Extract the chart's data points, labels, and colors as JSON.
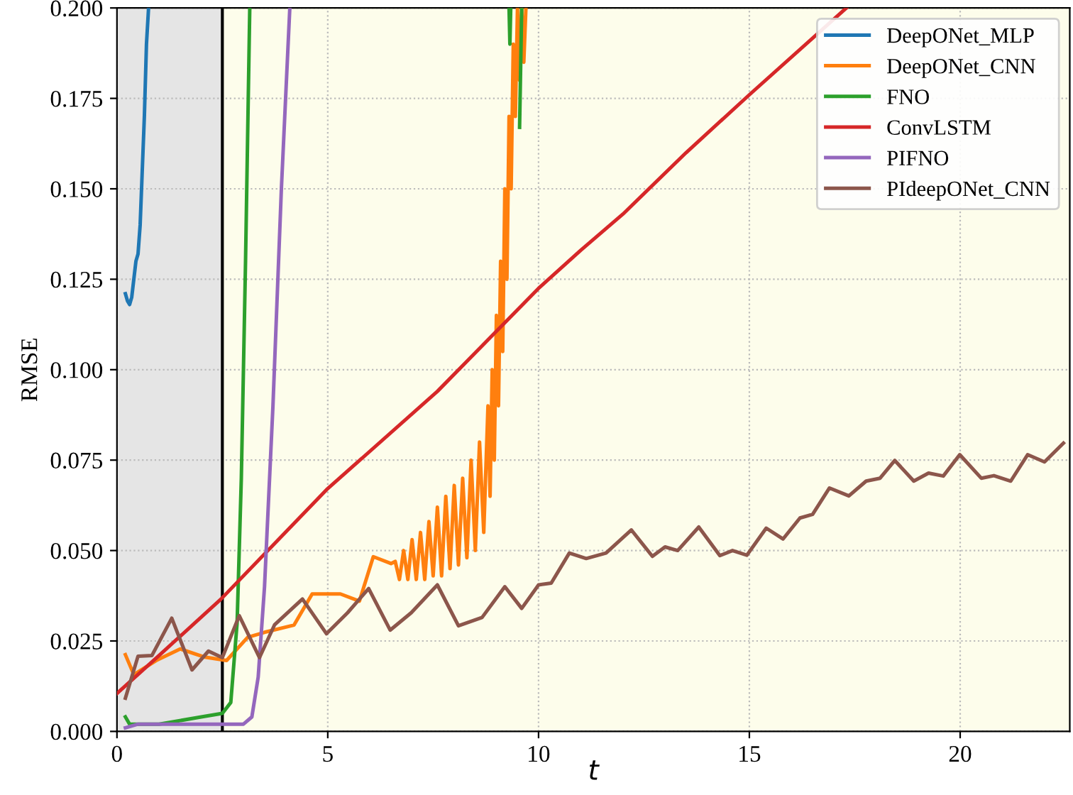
{
  "chart_data": {
    "type": "line",
    "xlabel": "t",
    "ylabel": "RMSE",
    "xlim": [
      0,
      22.6
    ],
    "ylim": [
      0,
      0.2
    ],
    "xticks": [
      0,
      5,
      10,
      15,
      20
    ],
    "yticks": [
      {
        "value": 0,
        "label": "0.000"
      },
      {
        "value": 0.025,
        "label": "0.025"
      },
      {
        "value": 0.05,
        "label": "0.050"
      },
      {
        "value": 0.075,
        "label": "0.075"
      },
      {
        "value": 0.1,
        "label": "0.100"
      },
      {
        "value": 0.125,
        "label": "0.125"
      },
      {
        "value": 0.15,
        "label": "0.150"
      },
      {
        "value": 0.175,
        "label": "0.175"
      },
      {
        "value": 0.2,
        "label": "0.200"
      }
    ],
    "grid": true,
    "legend": "top right",
    "marker": "none",
    "line_style": "solid",
    "bands": [
      {
        "axis": "x",
        "from": 0,
        "to": 2.5,
        "color": "#e5e5e5"
      },
      {
        "axis": "x",
        "from": 2.5,
        "to": 22.6,
        "color": "#fdfdeb"
      }
    ],
    "ref_lines": [
      {
        "axis": "x",
        "value": 2.5,
        "color": "#000000"
      }
    ],
    "series": [
      {
        "name": "DeepONet_MLP",
        "color": "#1f77b4",
        "x": [
          0.2,
          0.25,
          0.3,
          0.35,
          0.4,
          0.45,
          0.5,
          0.55,
          0.6,
          0.65,
          0.7,
          0.75
        ],
        "values": [
          0.121,
          0.119,
          0.118,
          0.12,
          0.125,
          0.13,
          0.132,
          0.14,
          0.155,
          0.17,
          0.19,
          0.2
        ]
      },
      {
        "name": "DeepONet_CNN",
        "color": "#ff7f0e",
        "x": [
          0.2,
          0.4,
          0.93,
          1.5,
          2.06,
          2.6,
          3.1,
          3.5,
          4.2,
          4.63,
          5.3,
          5.75,
          6.08,
          6.5,
          6.6,
          6.7,
          6.8,
          6.9,
          7.0,
          7.1,
          7.2,
          7.3,
          7.4,
          7.5,
          7.6,
          7.7,
          7.8,
          7.9,
          8.0,
          8.1,
          8.2,
          8.3,
          8.4,
          8.5,
          8.6,
          8.7,
          8.8,
          8.85,
          8.9,
          8.95,
          9.0,
          9.05,
          9.1,
          9.15,
          9.2,
          9.25,
          9.3,
          9.35,
          9.4,
          9.45,
          9.5,
          9.55,
          9.6,
          9.65,
          9.7
        ],
        "values": [
          0.0212,
          0.0157,
          0.0196,
          0.0228,
          0.0206,
          0.0196,
          0.026,
          0.0274,
          0.0294,
          0.038,
          0.038,
          0.036,
          0.0483,
          0.0464,
          0.047,
          0.042,
          0.05,
          0.042,
          0.053,
          0.042,
          0.055,
          0.042,
          0.058,
          0.043,
          0.062,
          0.043,
          0.065,
          0.045,
          0.068,
          0.046,
          0.07,
          0.048,
          0.075,
          0.05,
          0.08,
          0.055,
          0.09,
          0.065,
          0.1,
          0.075,
          0.115,
          0.09,
          0.13,
          0.105,
          0.15,
          0.125,
          0.17,
          0.15,
          0.19,
          0.17,
          0.2,
          0.18,
          0.2,
          0.185,
          0.2
        ]
      },
      {
        "name": "FNO",
        "color": "#2ca02c",
        "x": [
          0.2,
          0.3,
          1.0,
          2.0,
          2.5,
          2.7,
          2.85,
          2.95,
          3.05,
          3.15,
          9.28,
          9.3,
          9.32,
          9.34,
          9.5,
          9.55,
          9.6
        ],
        "values": [
          0.004,
          0.002,
          0.002,
          0.004,
          0.005,
          0.008,
          0.03,
          0.07,
          0.13,
          0.2,
          null,
          0.2,
          0.19,
          0.2,
          null,
          0.167,
          0.2
        ]
      },
      {
        "name": "ConvLSTM",
        "color": "#d62728",
        "x": [
          0,
          1,
          2.47,
          4.97,
          7.6,
          10,
          11,
          12,
          13.5,
          15,
          17.3
        ],
        "values": [
          0.0105,
          0.021,
          0.0366,
          0.0668,
          0.094,
          0.1225,
          0.133,
          0.143,
          0.16,
          0.176,
          0.2
        ]
      },
      {
        "name": "PIFNO",
        "color": "#9467bd",
        "x": [
          0.2,
          0.5,
          3.0,
          3.2,
          3.35,
          3.5,
          3.7,
          3.9,
          4.1
        ],
        "values": [
          0.001,
          0.002,
          0.002,
          0.004,
          0.015,
          0.04,
          0.09,
          0.15,
          0.2
        ]
      },
      {
        "name": "PIdeepONet_CNN",
        "color": "#8c564b",
        "x": [
          0.2,
          0.5,
          0.83,
          1.3,
          1.78,
          2.17,
          2.5,
          2.9,
          3.38,
          3.74,
          4.4,
          4.97,
          5.47,
          5.97,
          6.48,
          6.98,
          7.6,
          8.1,
          8.66,
          9.2,
          9.6,
          10.0,
          10.3,
          10.73,
          11.13,
          11.6,
          12.2,
          12.7,
          13.0,
          13.3,
          13.8,
          14.3,
          14.6,
          14.94,
          15.4,
          15.8,
          16.2,
          16.5,
          16.9,
          17.36,
          17.77,
          18.1,
          18.45,
          18.9,
          19.25,
          19.6,
          19.99,
          20.5,
          20.8,
          21.2,
          21.6,
          22.0,
          22.45
        ],
        "values": [
          0.0092,
          0.0208,
          0.021,
          0.0313,
          0.017,
          0.0222,
          0.0204,
          0.032,
          0.0204,
          0.0295,
          0.0366,
          0.027,
          0.0328,
          0.0395,
          0.028,
          0.0328,
          0.0405,
          0.0292,
          0.0315,
          0.04,
          0.034,
          0.0405,
          0.041,
          0.0493,
          0.0478,
          0.0493,
          0.0557,
          0.0484,
          0.051,
          0.05,
          0.0565,
          0.0486,
          0.05,
          0.0487,
          0.0562,
          0.0532,
          0.059,
          0.06,
          0.0673,
          0.0651,
          0.0692,
          0.07,
          0.0749,
          0.0692,
          0.0714,
          0.0706,
          0.0765,
          0.07,
          0.0707,
          0.0692,
          0.0765,
          0.0745,
          0.0797
        ]
      }
    ]
  }
}
